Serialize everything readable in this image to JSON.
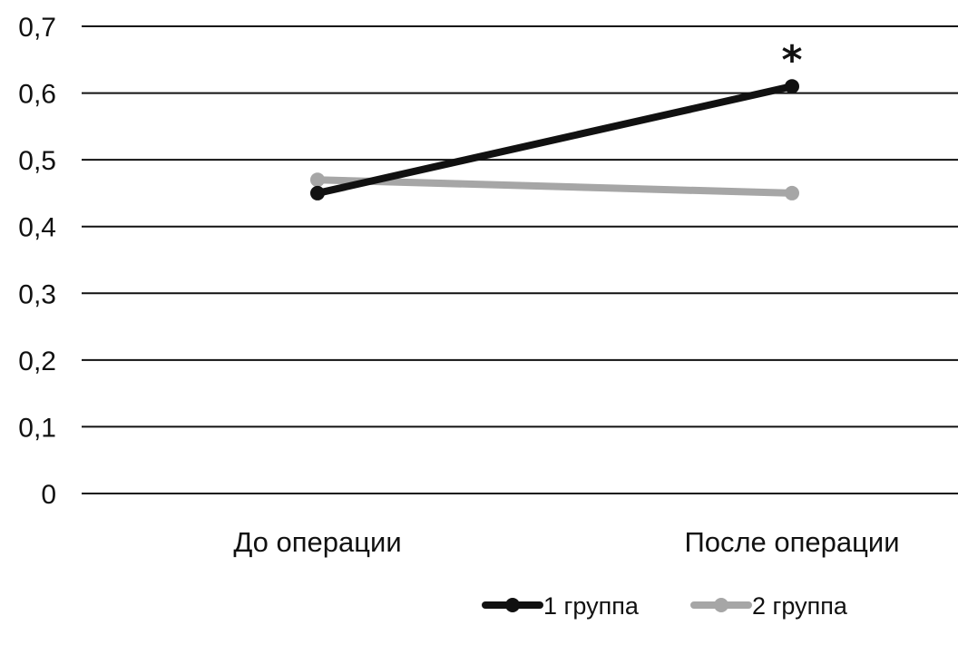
{
  "chart_data": {
    "type": "line",
    "categories": [
      "До операции",
      "После операции"
    ],
    "series": [
      {
        "name": "1 группа",
        "values": [
          0.45,
          0.61
        ],
        "color": "#111111"
      },
      {
        "name": "2 группа",
        "values": [
          0.47,
          0.45
        ],
        "color": "#a6a6a6"
      }
    ],
    "ylim": [
      0,
      0.7
    ],
    "yticks": [
      "0",
      "0,1",
      "0,2",
      "0,3",
      "0,4",
      "0,5",
      "0,6",
      "0,7"
    ],
    "grid": true,
    "legend": "bottom",
    "annotations": [
      {
        "text": "*",
        "series": 0,
        "category": 1
      }
    ],
    "title": "",
    "xlabel": "",
    "ylabel": ""
  }
}
